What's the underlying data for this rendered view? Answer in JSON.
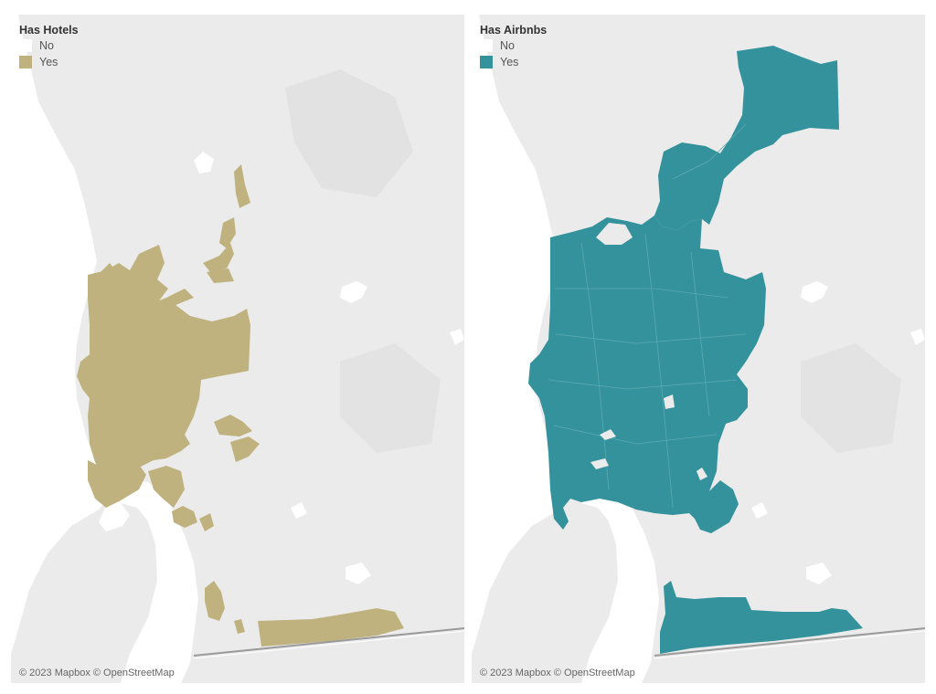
{
  "maps": [
    {
      "legend": {
        "title": "Has Hotels",
        "items": [
          {
            "label": "No",
            "color": "#ffffff"
          },
          {
            "label": "Yes",
            "color": "#bfb27f"
          }
        ]
      },
      "attribution": "© 2023 Mapbox © OpenStreetMap"
    },
    {
      "legend": {
        "title": "Has Airbnbs",
        "items": [
          {
            "label": "No",
            "color": "#ffffff"
          },
          {
            "label": "Yes",
            "color": "#33929c"
          }
        ]
      },
      "attribution": "© 2023 Mapbox © OpenStreetMap"
    }
  ],
  "colors": {
    "land": "#ebebeb",
    "water": "#ffffff",
    "border_road": "#9a9a9a"
  }
}
